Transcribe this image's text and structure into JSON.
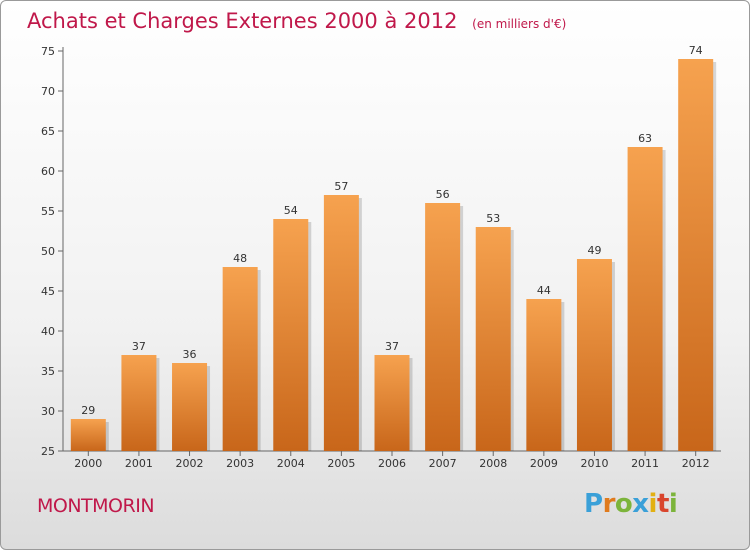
{
  "chart_data": {
    "type": "bar",
    "title": "Achats et Charges Externes 2000 à 2012",
    "unit": "(en milliers d'€)",
    "categories": [
      "2000",
      "2001",
      "2002",
      "2003",
      "2004",
      "2005",
      "2006",
      "2007",
      "2008",
      "2009",
      "2010",
      "2011",
      "2012"
    ],
    "values": [
      29,
      37,
      36,
      48,
      54,
      57,
      37,
      56,
      53,
      44,
      49,
      63,
      74
    ],
    "ylim": [
      25,
      75
    ],
    "yticks": [
      25,
      30,
      35,
      40,
      45,
      50,
      55,
      60,
      65,
      70,
      75
    ],
    "grid": false,
    "colors": {
      "bar_top": "#f6a24f",
      "bar_bottom": "#c8661a",
      "title": "#c0184a"
    }
  },
  "footer": {
    "city": "MONTMORIN",
    "logo": {
      "letters": [
        {
          "char": "P",
          "color": "#3aa0d8"
        },
        {
          "char": "r",
          "color": "#e07b1d"
        },
        {
          "char": "o",
          "color": "#7cb43b"
        },
        {
          "char": "x",
          "color": "#3aa0d8"
        },
        {
          "char": "i",
          "color": "#e2b012"
        },
        {
          "char": "t",
          "color": "#d9452d"
        },
        {
          "char": "i",
          "color": "#7cb43b"
        }
      ]
    }
  }
}
